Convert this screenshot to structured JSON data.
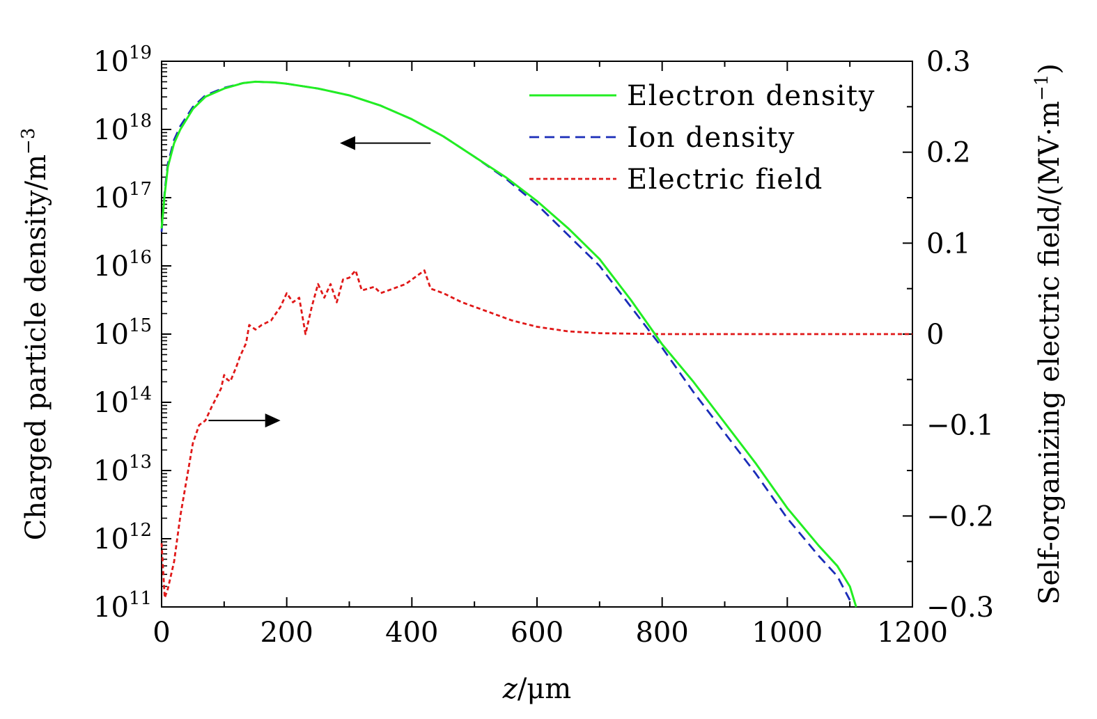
{
  "chart_data": {
    "type": "line",
    "x_label_var": "z",
    "x_label_unit": "/μm",
    "y_left_label": "Charged particle density/m",
    "y_left_label_sup": "−3",
    "y_right_label": "Self-organizing electric field/(MV·m",
    "y_right_label_sup": "−1",
    "y_right_label_end": ")",
    "xlim": [
      0,
      1200
    ],
    "x_ticks": [
      "0",
      "200",
      "400",
      "600",
      "800",
      "1000",
      "1200"
    ],
    "y_left_scale": "log",
    "y_left_lim_exp": [
      11,
      19
    ],
    "y_left_tick_base": "10",
    "y_left_tick_exps": [
      "11",
      "12",
      "13",
      "14",
      "15",
      "16",
      "17",
      "18",
      "19"
    ],
    "y_right_lim": [
      -0.3,
      0.3
    ],
    "y_right_ticks": [
      "−0.3",
      "−0.2",
      "−0.1",
      "0",
      "0.1",
      "0.2",
      "0.3"
    ],
    "legend_position": "top-right",
    "series": [
      {
        "name": "Electron density",
        "axis": "left",
        "style": "solid",
        "color": "#22ee22",
        "x": [
          0,
          5,
          10,
          20,
          30,
          50,
          70,
          100,
          130,
          150,
          180,
          200,
          250,
          300,
          350,
          400,
          420,
          450,
          500,
          550,
          600,
          650,
          700,
          750,
          800,
          850,
          900,
          950,
          1000,
          1050,
          1080,
          1100,
          1110
        ],
        "y_log10": [
          16.55,
          17.05,
          17.45,
          17.8,
          18.0,
          18.3,
          18.48,
          18.6,
          18.68,
          18.7,
          18.69,
          18.67,
          18.6,
          18.5,
          18.35,
          18.15,
          18.05,
          17.9,
          17.6,
          17.3,
          16.95,
          16.55,
          16.1,
          15.5,
          14.85,
          14.3,
          13.7,
          13.1,
          12.45,
          11.9,
          11.6,
          11.3,
          11.0
        ]
      },
      {
        "name": "Ion density",
        "axis": "left",
        "style": "dashed",
        "color": "#1a2cb8",
        "x": [
          0,
          5,
          10,
          20,
          30,
          50,
          70,
          100,
          130,
          150,
          180,
          200,
          250,
          300,
          350,
          400,
          420,
          450,
          500,
          550,
          600,
          650,
          700,
          750,
          800,
          850,
          900,
          950,
          1000,
          1050,
          1080,
          1100
        ],
        "y_log10": [
          16.5,
          17.1,
          17.5,
          17.85,
          18.05,
          18.33,
          18.5,
          18.61,
          18.68,
          18.7,
          18.69,
          18.67,
          18.6,
          18.5,
          18.35,
          18.15,
          18.05,
          17.9,
          17.6,
          17.28,
          16.9,
          16.45,
          16.0,
          15.4,
          14.8,
          14.15,
          13.55,
          12.95,
          12.3,
          11.75,
          11.45,
          11.1
        ]
      },
      {
        "name": "Electric field",
        "axis": "right",
        "style": "dotted",
        "color": "#e01818",
        "x": [
          0,
          5,
          10,
          20,
          30,
          40,
          50,
          60,
          70,
          80,
          95,
          100,
          105,
          110,
          120,
          125,
          135,
          140,
          150,
          160,
          175,
          190,
          200,
          210,
          220,
          230,
          240,
          250,
          260,
          270,
          280,
          290,
          300,
          310,
          320,
          330,
          340,
          350,
          370,
          390,
          410,
          420,
          430,
          450,
          480,
          520,
          560,
          600,
          650,
          700,
          800,
          900,
          1000,
          1100,
          1200
        ],
        "y": [
          -0.23,
          -0.29,
          -0.28,
          -0.25,
          -0.2,
          -0.16,
          -0.12,
          -0.1,
          -0.095,
          -0.08,
          -0.06,
          -0.045,
          -0.05,
          -0.052,
          -0.035,
          -0.025,
          -0.01,
          0.01,
          0.005,
          0.01,
          0.015,
          0.03,
          0.045,
          0.035,
          0.04,
          0.0,
          0.03,
          0.055,
          0.04,
          0.055,
          0.035,
          0.06,
          0.062,
          0.07,
          0.048,
          0.05,
          0.052,
          0.045,
          0.05,
          0.055,
          0.065,
          0.07,
          0.05,
          0.045,
          0.035,
          0.025,
          0.015,
          0.008,
          0.003,
          0.001,
          0.0,
          0.0,
          0.0,
          0.0,
          0.0
        ]
      }
    ],
    "annotations": [
      {
        "name": "left-axis-arrow",
        "target_axis": "left",
        "direction": "left",
        "x_from": 430,
        "x_to": 285,
        "y_log10": 17.8
      },
      {
        "name": "right-axis-arrow",
        "target_axis": "right",
        "direction": "right",
        "x_from": 75,
        "x_to": 190,
        "y_right": -0.095
      }
    ]
  }
}
